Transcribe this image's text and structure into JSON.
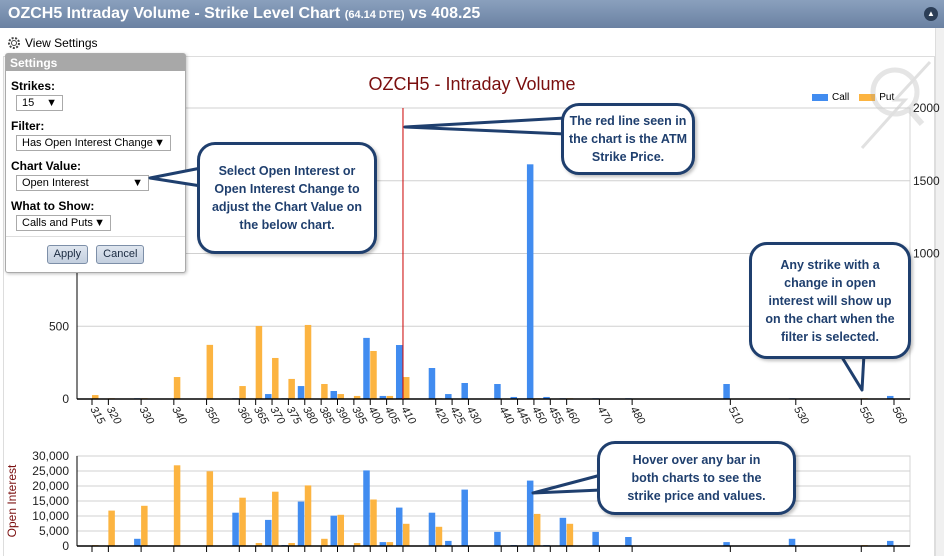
{
  "header": {
    "title": "OZCH5 Intraday Volume - Strike Level Chart",
    "dte": "(64.14 DTE)",
    "vs": "vs 408.25",
    "collapse_icon": "collapse-icon"
  },
  "view_settings": "View Settings",
  "settings": {
    "title": "Settings",
    "strikes_label": "Strikes:",
    "strikes_value": "15",
    "filter_label": "Filter:",
    "filter_value": "Has Open Interest Change",
    "chart_value_label": "Chart Value:",
    "chart_value": "Open Interest",
    "show_label": "What to Show:",
    "show_value": "Calls and Puts",
    "apply": "Apply",
    "cancel": "Cancel"
  },
  "callouts": {
    "settings": "Select Open Interest or Open Interest Change to adjust the Chart Value on the below chart.",
    "redline": "The red line seen in the chart is the ATM Strike Price.",
    "filter": "Any strike with a change in open interest will show up on the chart when the filter is selected.",
    "hover": "Hover over any bar in both charts to see the strike price and values."
  },
  "colors": {
    "call": "#418cf0",
    "put": "#fcb441",
    "atm": "#cc0000",
    "title": "#7a0f0f"
  },
  "chart_data": [
    {
      "type": "bar",
      "title": "OZCH5 - Intraday Volume",
      "legend": [
        "Call",
        "Put"
      ],
      "legend_position": "top-right",
      "ylabel": "",
      "ylim": [
        0,
        2000
      ],
      "yticks": [
        0,
        500,
        1000,
        1500,
        2000
      ],
      "xlim": [
        315,
        560
      ],
      "atm_strike": 410,
      "x": [
        315,
        320,
        330,
        340,
        350,
        360,
        365,
        370,
        375,
        380,
        385,
        390,
        395,
        400,
        405,
        410,
        420,
        425,
        430,
        440,
        445,
        450,
        455,
        460,
        470,
        480,
        510,
        530,
        550,
        560
      ],
      "series": [
        {
          "name": "Call",
          "values": [
            0,
            0,
            5,
            0,
            0,
            5,
            0,
            34,
            5,
            89,
            0,
            55,
            0,
            420,
            21,
            371,
            213,
            34,
            110,
            103,
            14,
            1613,
            14,
            5,
            5,
            5,
            103,
            5,
            0,
            21
          ]
        },
        {
          "name": "Put",
          "values": [
            27,
            5,
            5,
            151,
            372,
            89,
            502,
            282,
            138,
            509,
            103,
            34,
            21,
            330,
            21,
            151,
            5,
            0,
            0,
            0,
            0,
            5,
            0,
            5,
            0,
            0,
            0,
            0,
            5,
            0
          ]
        }
      ]
    },
    {
      "type": "bar",
      "title": "",
      "ylabel": "Open Interest",
      "ylim": [
        0,
        30000
      ],
      "yticks": [
        0,
        5000,
        10000,
        15000,
        20000,
        25000,
        30000
      ],
      "ytick_labels": [
        "0",
        "5,000",
        "10,000",
        "15,000",
        "20,000",
        "25,000",
        "30,000"
      ],
      "xlim": [
        315,
        560
      ],
      "x": [
        315,
        320,
        330,
        340,
        350,
        360,
        365,
        370,
        375,
        380,
        385,
        390,
        395,
        400,
        405,
        410,
        420,
        425,
        430,
        440,
        445,
        450,
        455,
        460,
        470,
        480,
        510,
        530,
        550,
        560
      ],
      "series": [
        {
          "name": "Call",
          "values": [
            0,
            0,
            2400,
            0,
            0,
            11100,
            0,
            8700,
            300,
            14800,
            0,
            10100,
            0,
            25200,
            1300,
            12800,
            11100,
            1700,
            18800,
            4700,
            300,
            21800,
            300,
            9400,
            4700,
            3000,
            1300,
            2400,
            0,
            1700
          ]
        },
        {
          "name": "Put",
          "values": [
            300,
            11800,
            13400,
            26900,
            24900,
            16100,
            1000,
            18100,
            1000,
            20200,
            2400,
            10400,
            1000,
            15500,
            1300,
            7400,
            6400,
            0,
            0,
            0,
            0,
            10700,
            0,
            7400,
            0,
            0,
            0,
            0,
            300,
            0
          ]
        }
      ]
    }
  ]
}
